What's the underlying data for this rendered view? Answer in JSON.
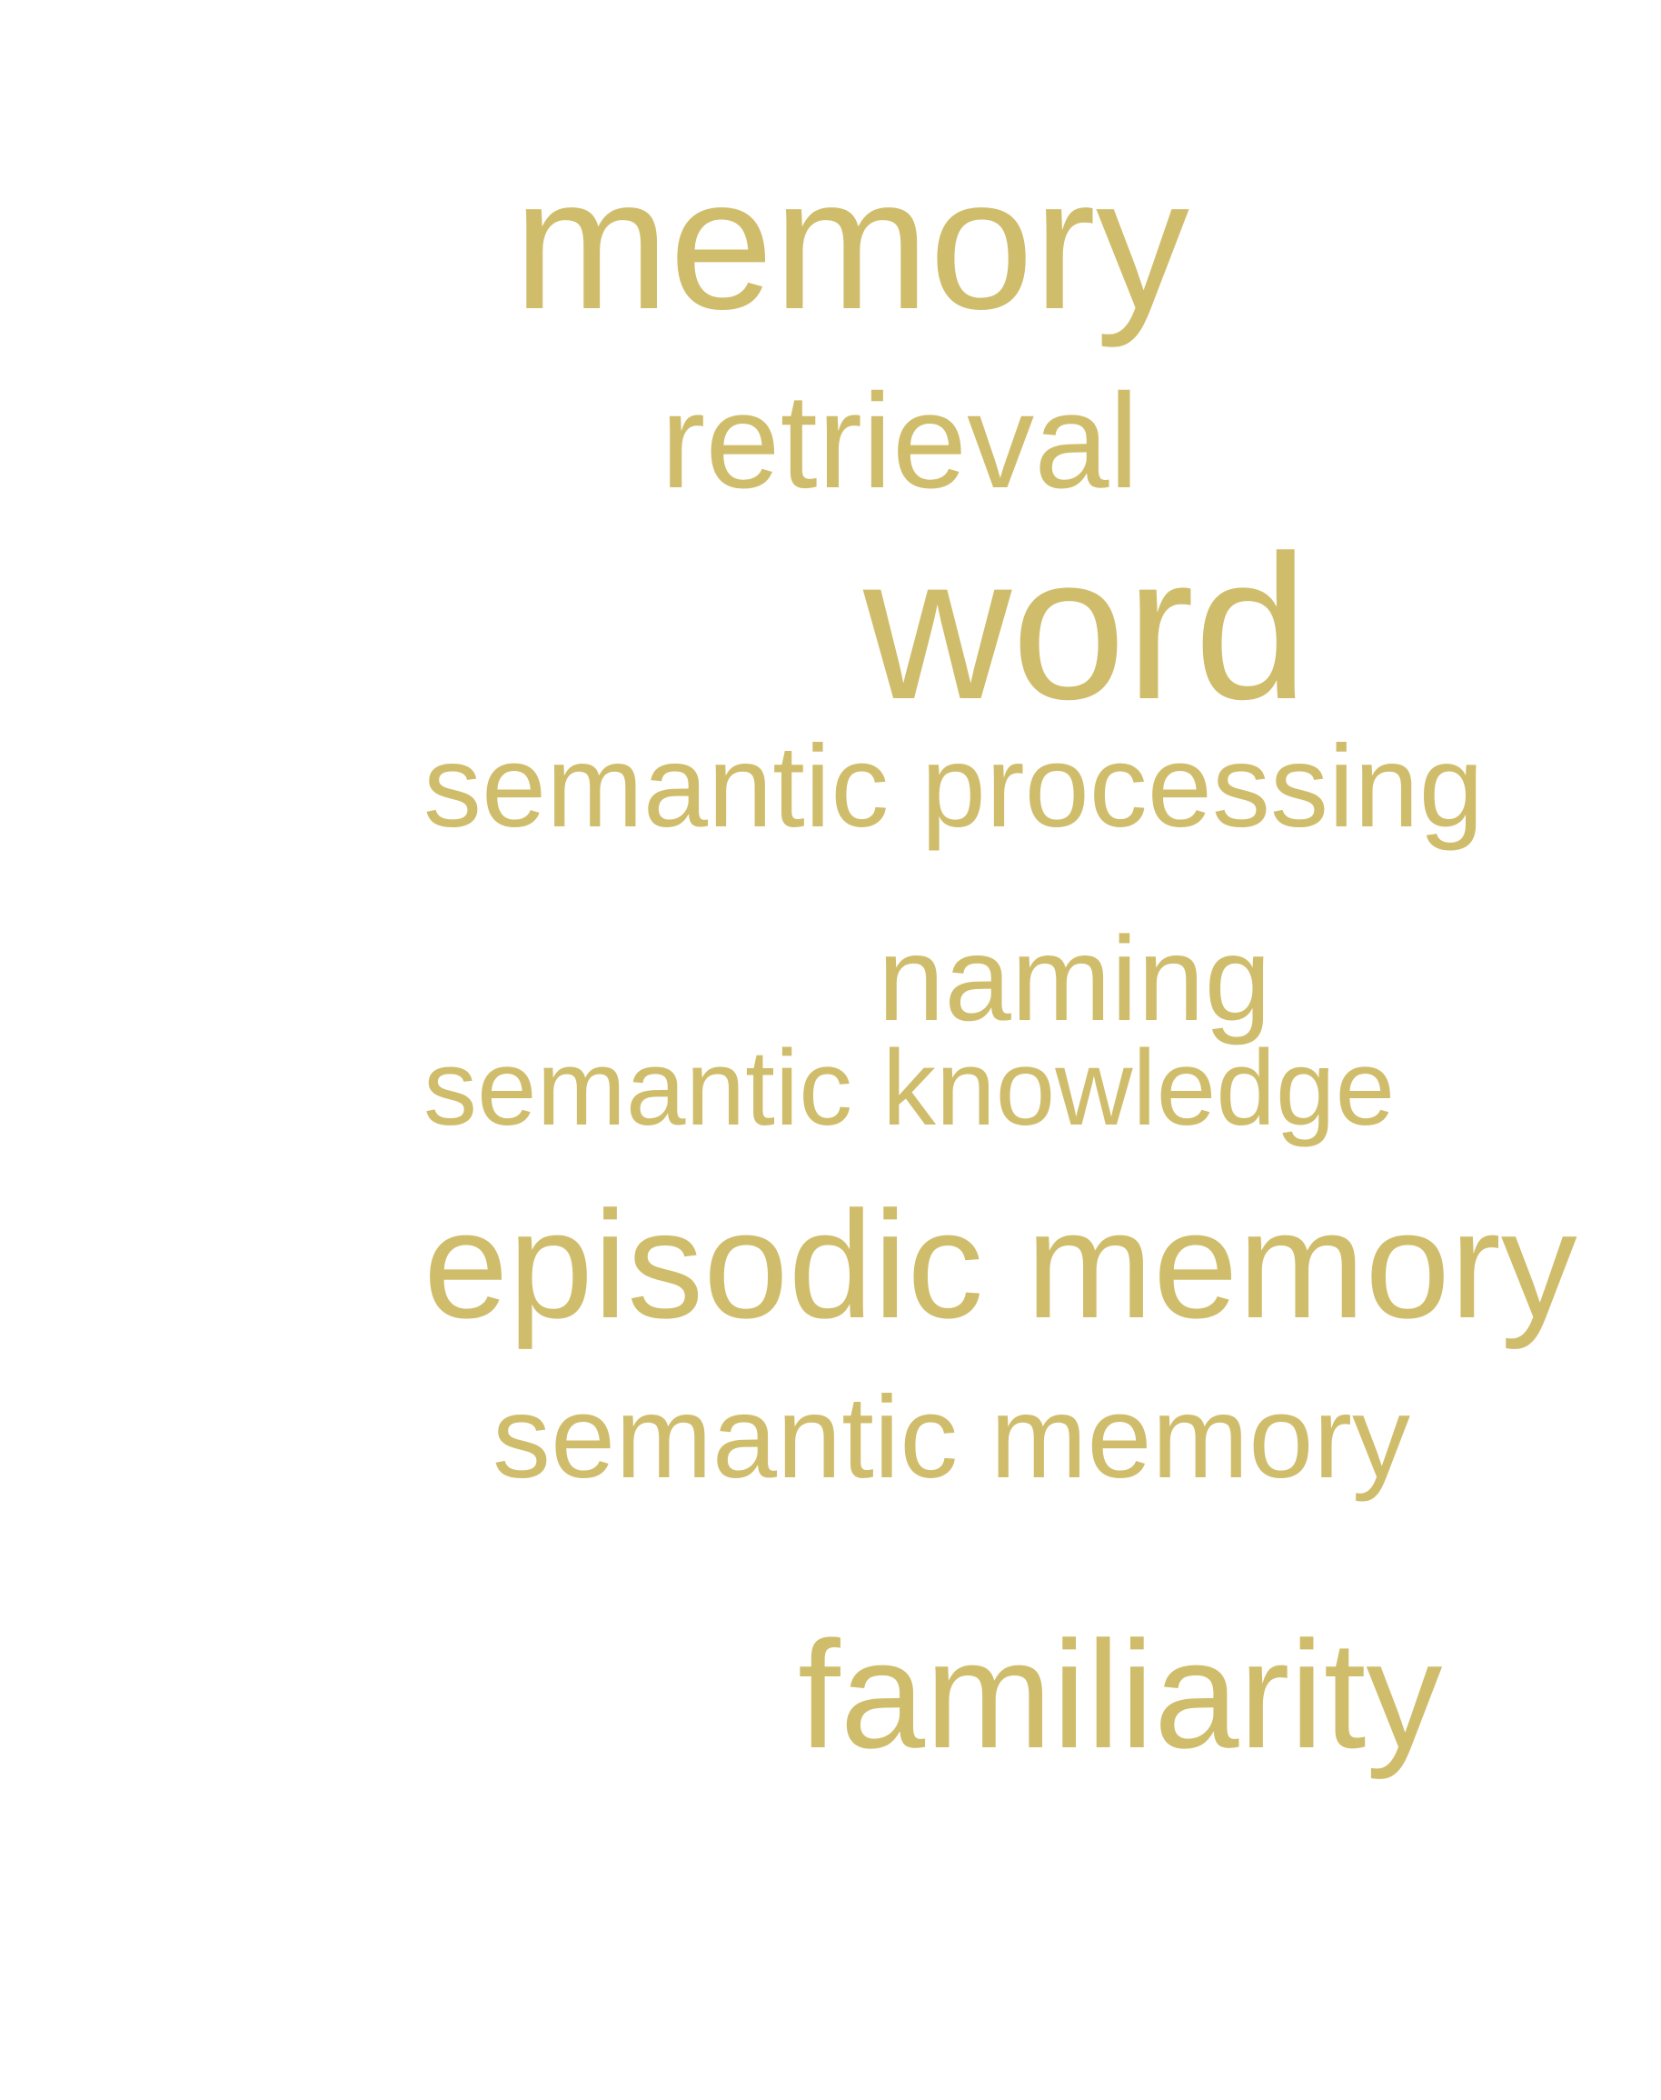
{
  "colors": {
    "background": "#ffffff",
    "word": "#d0bd6c"
  },
  "words": [
    "memory",
    "retrieval",
    "word",
    "semantic processing",
    "naming",
    "semantic knowledge",
    "episodic memory",
    "semantic memory",
    "familiarity"
  ]
}
